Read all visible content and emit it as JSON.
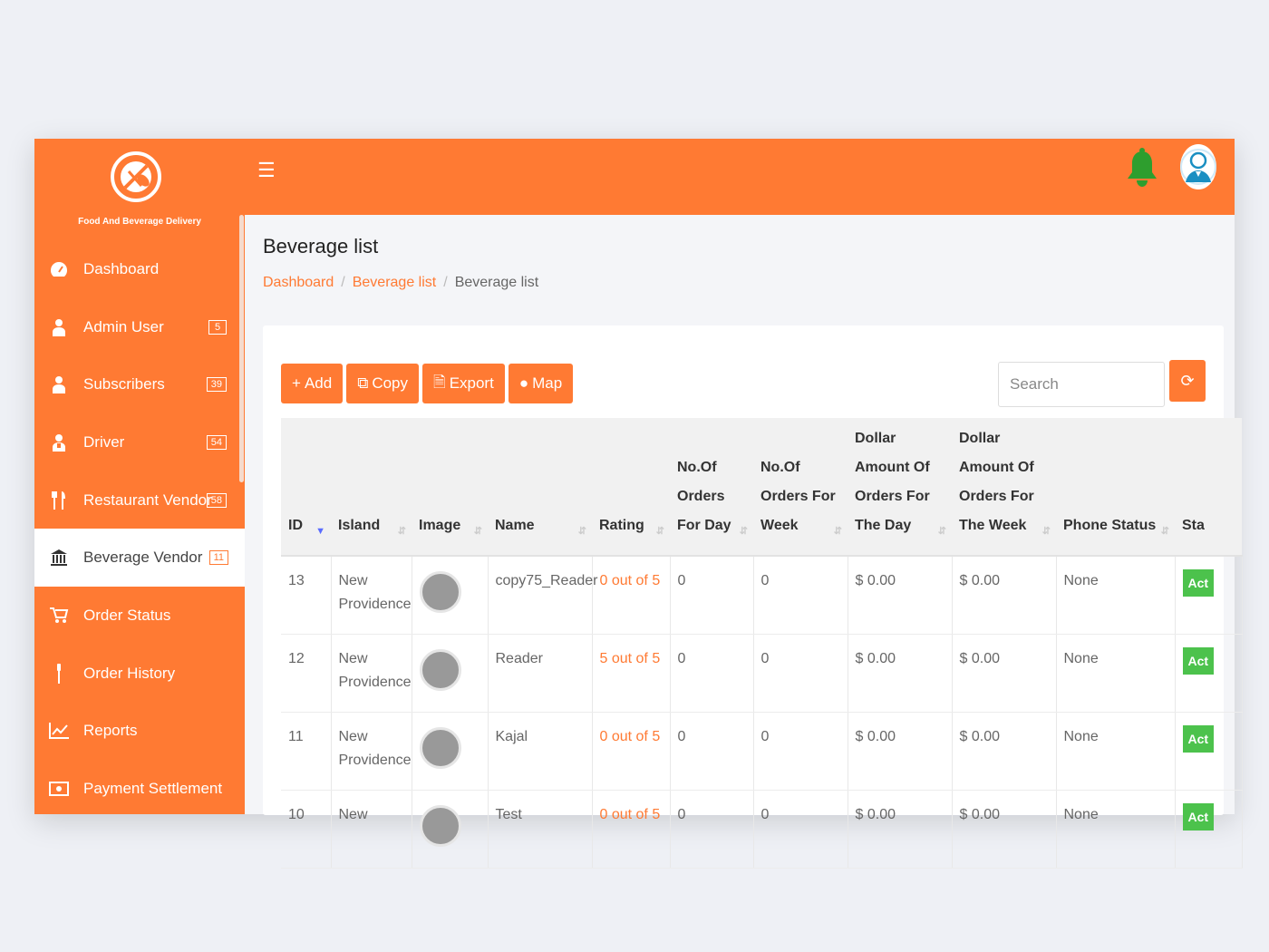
{
  "brand": {
    "name": "Food And Beverage Delivery",
    "logo_icon": "utensils-logo-icon"
  },
  "header": {
    "menu_icon": "hamburger-icon",
    "notification_icon": "bell-icon",
    "avatar_icon": "user-avatar-icon"
  },
  "sidebar": {
    "items": [
      {
        "label": "Dashboard",
        "icon": "dashboard-icon",
        "badge": ""
      },
      {
        "label": "Admin User",
        "icon": "user-icon",
        "badge": "5"
      },
      {
        "label": "Subscribers",
        "icon": "user-icon",
        "badge": "39"
      },
      {
        "label": "Driver",
        "icon": "driver-icon",
        "badge": "54"
      },
      {
        "label": "Restaurant Vendor",
        "icon": "cutlery-icon",
        "badge": "58"
      },
      {
        "label": "Beverage Vendor",
        "icon": "bank-icon",
        "badge": "11"
      },
      {
        "label": "Order Status",
        "icon": "cart-icon",
        "badge": ""
      },
      {
        "label": "Order History",
        "icon": "history-icon",
        "badge": ""
      },
      {
        "label": "Reports",
        "icon": "chart-icon",
        "badge": ""
      },
      {
        "label": "Payment Settlement",
        "icon": "money-icon",
        "badge": ""
      }
    ],
    "active": "Beverage Vendor"
  },
  "page": {
    "title": "Beverage list",
    "breadcrumb": [
      "Dashboard",
      "Beverage list",
      "Beverage list"
    ]
  },
  "toolbar": {
    "add_label": "Add",
    "copy_label": "Copy",
    "export_label": "Export",
    "map_label": "Map",
    "search_placeholder": "Search"
  },
  "table": {
    "columns": [
      "ID",
      "Island",
      "Image",
      "Name",
      "Rating",
      "No.Of Orders For Day",
      "No.Of Orders For Week",
      "Dollar Amount Of Orders For The Day",
      "Dollar Amount Of Orders For The Week",
      "Phone Status",
      "Sta"
    ],
    "rows": [
      {
        "id": "13",
        "island": "New Providence",
        "name": "copy75_Reader",
        "rating": "0 out of 5",
        "orders_day": "0",
        "orders_week": "0",
        "amount_day": "$ 0.00",
        "amount_week": "$ 0.00",
        "phone_status": "None",
        "status": "Act"
      },
      {
        "id": "12",
        "island": "New Providence",
        "name": "Reader",
        "rating": "5 out of 5",
        "orders_day": "0",
        "orders_week": "0",
        "amount_day": "$ 0.00",
        "amount_week": "$ 0.00",
        "phone_status": "None",
        "status": "Act"
      },
      {
        "id": "11",
        "island": "New Providence",
        "name": "Kajal",
        "rating": "0 out of 5",
        "orders_day": "0",
        "orders_week": "0",
        "amount_day": "$ 0.00",
        "amount_week": "$ 0.00",
        "phone_status": "None",
        "status": "Act"
      },
      {
        "id": "10",
        "island": "New",
        "name": "Test",
        "rating": "0 out of 5",
        "orders_day": "0",
        "orders_week": "0",
        "amount_day": "$ 0.00",
        "amount_week": "$ 0.00",
        "phone_status": "None",
        "status": "Act"
      }
    ]
  },
  "colors": {
    "accent": "#ff7a33",
    "bell": "#2e9e2e",
    "status_active": "#4cc24c"
  }
}
